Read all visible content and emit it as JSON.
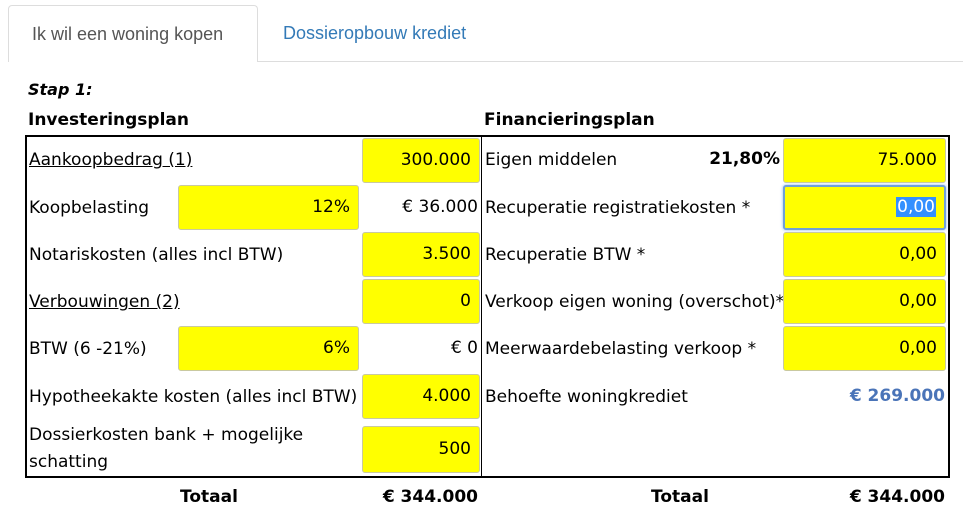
{
  "tabs": [
    {
      "label": "Ik wil een woning kopen",
      "active": true
    },
    {
      "label": "Dossieropbouw krediet",
      "active": false
    }
  ],
  "step_label": "Stap 1:",
  "investment": {
    "title": "Investeringsplan",
    "rows": [
      {
        "label": "Aankoopbedrag (1)",
        "value": "300.000"
      },
      {
        "label": "Koopbelasting",
        "percent": "12%",
        "computed": "€ 36.000"
      },
      {
        "label": "Notariskosten (alles incl BTW)",
        "value": "3.500"
      },
      {
        "label": "Verbouwingen (2)",
        "value": "0"
      },
      {
        "label": "BTW (6 -21%)",
        "percent": "6%",
        "computed": "€ 0"
      },
      {
        "label": "Hypotheekakte kosten (alles incl BTW)",
        "value": "4.000"
      },
      {
        "label": "Dossierkosten bank + mogelijke schatting",
        "value": "500"
      }
    ],
    "total_label": "Totaal",
    "total_value": "€ 344.000"
  },
  "financing": {
    "title": "Financieringsplan",
    "rows": [
      {
        "label": "Eigen middelen",
        "percent": "21,80%",
        "value": "75.000"
      },
      {
        "label": "Recuperatie registratiekosten *",
        "value": "0,00"
      },
      {
        "label": "Recuperatie BTW *",
        "value": "0,00"
      },
      {
        "label": "Verkoop eigen woning (overschot)*",
        "value": "0,00"
      },
      {
        "label": "Meerwaardebelasting verkoop *",
        "value": "0,00"
      },
      {
        "label": "Behoefte woningkrediet",
        "value": "€ 269.000"
      }
    ],
    "total_label": "Totaal",
    "total_value": "€ 344.000"
  },
  "colors": {
    "input_bg": "#ffff00",
    "link": "#337ab7",
    "accent_value": "#4a74b8"
  }
}
